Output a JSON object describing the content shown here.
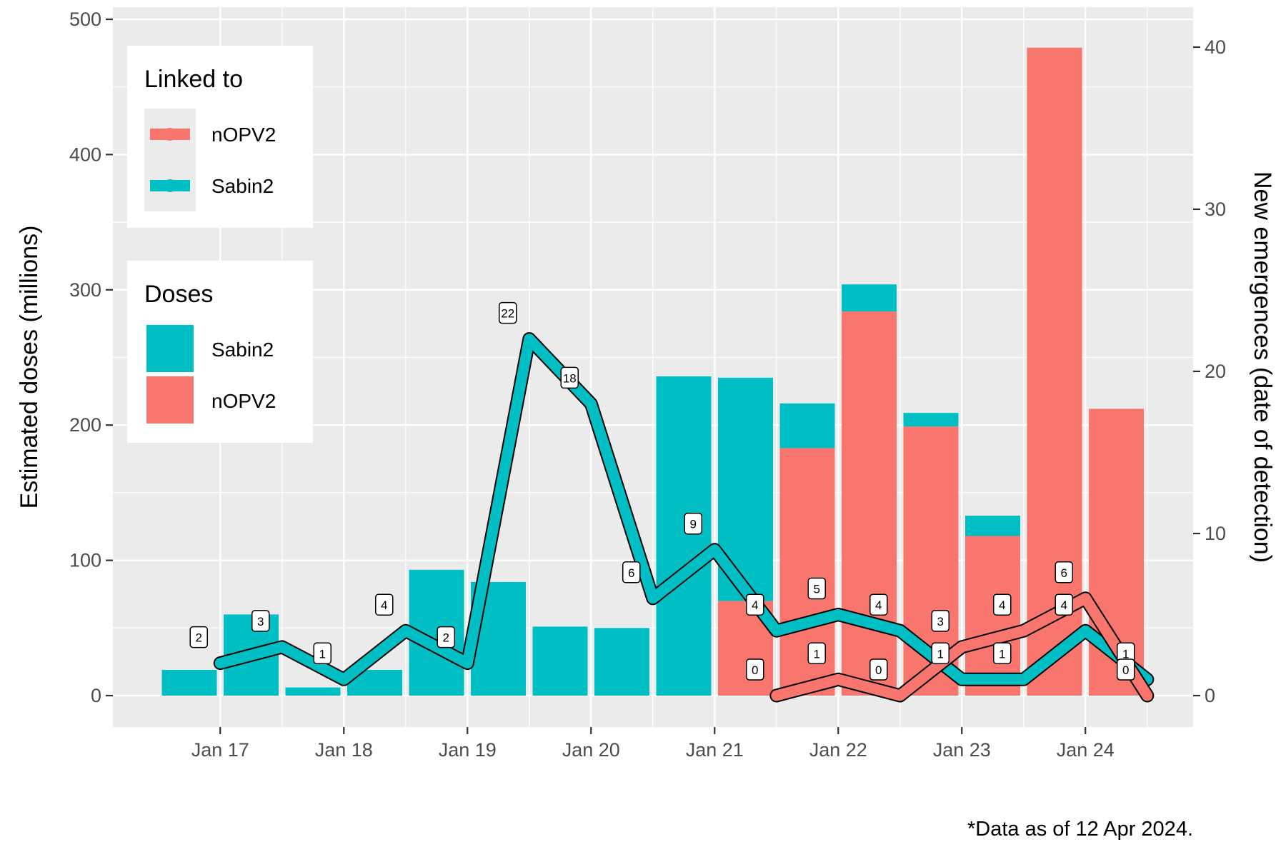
{
  "chart_data": {
    "type": "bar",
    "caption": "*Data as of 12 Apr 2024.",
    "y_left_label": "Estimated doses (millions)",
    "y_right_label": "New emergences (date of detection)",
    "y_left_lim": [
      0,
      500
    ],
    "y_left_ticks": [
      0,
      100,
      200,
      300,
      400,
      500
    ],
    "y_right_lim": [
      0,
      40
    ],
    "y_right_ticks": [
      0,
      10,
      20,
      30,
      40
    ],
    "x_tick_labels": [
      "Jan 17",
      "Jan 18",
      "Jan 19",
      "Jan 20",
      "Jan 21",
      "Jan 22",
      "Jan 23",
      "Jan 24"
    ],
    "grid": true,
    "periods": [
      "2016H2",
      "2017H1",
      "2017H2",
      "2018H1",
      "2018H2",
      "2019H1",
      "2019H2",
      "2020H1",
      "2020H2",
      "2021H1",
      "2021H2",
      "2022H1",
      "2022H2",
      "2023H1",
      "2023H2",
      "2024H1"
    ],
    "dose_series": [
      {
        "name": "Sabin2",
        "color": "#00BFC4",
        "values": [
          19,
          60,
          6,
          19,
          93,
          84,
          51,
          50,
          236,
          165,
          33,
          20,
          10,
          15,
          0,
          0
        ]
      },
      {
        "name": "nOPV2",
        "color": "#F8766D",
        "values": [
          0,
          0,
          0,
          0,
          0,
          0,
          0,
          0,
          0,
          70,
          183,
          284,
          199,
          118,
          479,
          212
        ]
      }
    ],
    "emergence_series": [
      {
        "name": "Sabin2",
        "color": "#00BFC4",
        "x": [
          "2016H2",
          "2017H1",
          "2017H2",
          "2018H1",
          "2018H2",
          "2019H1",
          "2019H2",
          "2020H1",
          "2020H2",
          "2021H1",
          "2021H2",
          "2022H1",
          "2022H2",
          "2023H1",
          "2023H2",
          "2024H1"
        ],
        "values": [
          2,
          3,
          1,
          4,
          2,
          22,
          18,
          6,
          9,
          4,
          5,
          4,
          1,
          1,
          4,
          1
        ]
      },
      {
        "name": "nOPV2",
        "color": "#F8766D",
        "x": [
          "2021H1",
          "2021H2",
          "2022H1",
          "2022H2",
          "2023H1",
          "2023H2",
          "2024H1"
        ],
        "values": [
          0,
          1,
          0,
          3,
          4,
          6,
          0
        ]
      }
    ],
    "legend_linked": {
      "title": "Linked to",
      "items": [
        "nOPV2",
        "Sabin2"
      ]
    },
    "legend_doses": {
      "title": "Doses",
      "items": [
        "Sabin2",
        "nOPV2"
      ]
    },
    "legend_placement": "top-left"
  }
}
